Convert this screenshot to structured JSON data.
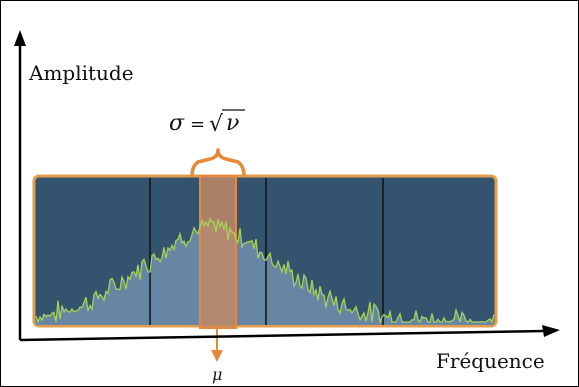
{
  "labels": {
    "y_axis": "Amplitude",
    "x_axis": "Fréquence",
    "sigma_formula": {
      "sigma": "σ",
      "equals": "=",
      "radical": "√",
      "nu": "ν"
    },
    "mu": "μ"
  },
  "colors": {
    "panel_fill": "#34536f",
    "panel_border": "#e39b4c",
    "area_fill": "#6a89a7",
    "signal_line": "#a6d157",
    "highlight_fill": "#c08a67",
    "highlight_stroke": "#e6893c",
    "divider": "#111111",
    "axis": "#000000"
  },
  "icons": {
    "y_axis_arrow": "arrow-up-icon",
    "x_axis_arrow": "arrow-right-icon",
    "mu_arrow": "arrow-down-icon",
    "sigma_brace": "curly-brace-icon"
  }
}
